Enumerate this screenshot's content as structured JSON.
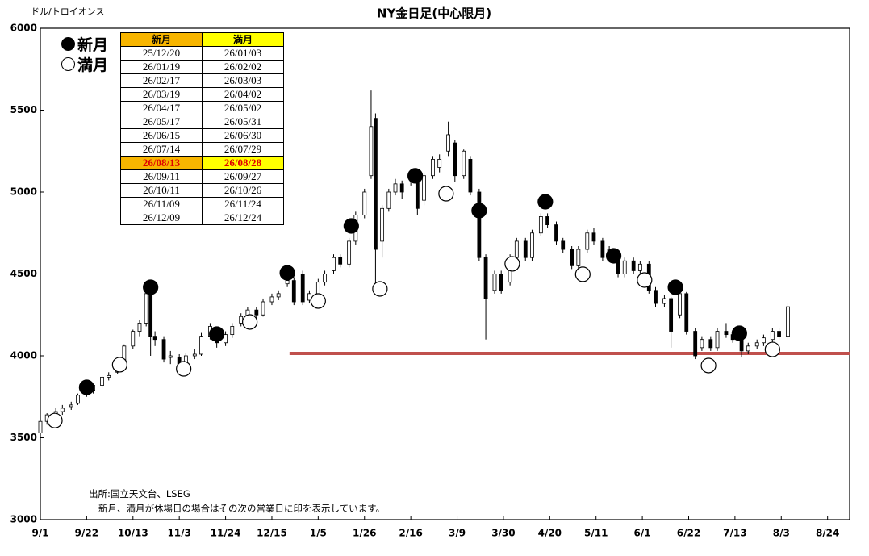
{
  "chart_data": {
    "type": "candlestick",
    "title": "NY金日足(中心限月)",
    "unit_label": "ドル/トロイオンス",
    "source": "出所:国立天文台、LSEG",
    "note": "新月、満月が休場日の場合はその次の営業日に印を表示しています。",
    "xlim": [
      0,
      367
    ],
    "xticks": [
      {
        "value": 0,
        "label": "9/1"
      },
      {
        "value": 21,
        "label": "9/22"
      },
      {
        "value": 42,
        "label": "10/13"
      },
      {
        "value": 63,
        "label": "11/3"
      },
      {
        "value": 84,
        "label": "11/24"
      },
      {
        "value": 105,
        "label": "12/15"
      },
      {
        "value": 126,
        "label": "1/5"
      },
      {
        "value": 147,
        "label": "1/26"
      },
      {
        "value": 168,
        "label": "2/16"
      },
      {
        "value": 189,
        "label": "3/9"
      },
      {
        "value": 210,
        "label": "3/30"
      },
      {
        "value": 231,
        "label": "4/20"
      },
      {
        "value": 252,
        "label": "5/11"
      },
      {
        "value": 273,
        "label": "6/1"
      },
      {
        "value": 294,
        "label": "6/22"
      },
      {
        "value": 315,
        "label": "7/13"
      },
      {
        "value": 336,
        "label": "8/3"
      },
      {
        "value": 357,
        "label": "8/24"
      }
    ],
    "ylim": [
      3000,
      6000
    ],
    "yticks": [
      3000,
      3500,
      4000,
      4500,
      5000,
      5500,
      6000
    ],
    "up_color": "#ffffff",
    "down_color": "#000000",
    "candles": {
      "x": [
        0,
        3,
        7,
        10,
        14,
        17,
        21,
        24,
        28,
        31,
        35,
        38,
        42,
        45,
        48,
        50,
        52,
        56,
        59,
        63,
        66,
        70,
        73,
        77,
        80,
        84,
        87,
        91,
        94,
        98,
        101,
        105,
        108,
        112,
        115,
        119,
        122,
        126,
        129,
        133,
        136,
        140,
        143,
        147,
        150,
        152,
        155,
        158,
        161,
        164,
        168,
        171,
        174,
        178,
        181,
        185,
        188,
        192,
        195,
        199,
        202,
        206,
        209,
        213,
        216,
        220,
        223,
        227,
        230,
        234,
        237,
        241,
        244,
        248,
        251,
        255,
        258,
        262,
        265,
        269,
        272,
        276,
        279,
        283,
        286,
        290,
        293,
        297,
        300,
        304,
        307,
        311,
        314,
        318,
        321,
        325,
        328,
        332,
        335,
        339
      ],
      "open": [
        3530,
        3600,
        3640,
        3660,
        3690,
        3710,
        3770,
        3790,
        3820,
        3870,
        3900,
        3970,
        4060,
        4150,
        4200,
        4370,
        4120,
        4100,
        3990,
        3990,
        3960,
        4000,
        4010,
        4120,
        4130,
        4080,
        4130,
        4200,
        4240,
        4280,
        4250,
        4330,
        4360,
        4440,
        4460,
        4500,
        4340,
        4380,
        4450,
        4520,
        4600,
        4560,
        4700,
        4860,
        5100,
        5450,
        4700,
        4900,
        5000,
        5050,
        5080,
        5100,
        4950,
        5100,
        5150,
        5250,
        5300,
        5100,
        5200,
        5000,
        4600,
        4400,
        4500,
        4450,
        4600,
        4700,
        4600,
        4750,
        4850,
        4800,
        4700,
        4650,
        4550,
        4650,
        4750,
        4700,
        4600,
        4600,
        4500,
        4580,
        4520,
        4560,
        4400,
        4320,
        4350,
        4250,
        4380,
        4150,
        4050,
        4100,
        4050,
        4150,
        4130,
        4100,
        4030,
        4060,
        4080,
        4100,
        4150,
        4120
      ],
      "high": [
        3620,
        3650,
        3680,
        3700,
        3720,
        3770,
        3800,
        3830,
        3880,
        3900,
        3970,
        4070,
        4160,
        4220,
        4400,
        4390,
        4150,
        4120,
        4030,
        4010,
        4020,
        4040,
        4140,
        4200,
        4150,
        4150,
        4200,
        4260,
        4300,
        4300,
        4350,
        4380,
        4400,
        4480,
        4480,
        4520,
        4400,
        4470,
        4520,
        4620,
        4620,
        4720,
        4880,
        5020,
        5620,
        5480,
        4920,
        5020,
        5080,
        5070,
        5120,
        5110,
        5120,
        5220,
        5230,
        5430,
        5320,
        5260,
        5220,
        5020,
        4620,
        4520,
        4520,
        4620,
        4720,
        4720,
        4770,
        4870,
        4870,
        4820,
        4720,
        4670,
        4670,
        4770,
        4780,
        4720,
        4670,
        4620,
        4600,
        4600,
        4580,
        4580,
        4420,
        4370,
        4360,
        4400,
        4390,
        4170,
        4120,
        4120,
        4170,
        4200,
        4150,
        4120,
        4080,
        4100,
        4130,
        4170,
        4170,
        4320
      ],
      "low": [
        3510,
        3580,
        3620,
        3640,
        3670,
        3700,
        3750,
        3770,
        3800,
        3850,
        3890,
        3950,
        4040,
        4120,
        4180,
        4000,
        4060,
        3960,
        3950,
        3900,
        3940,
        3980,
        4000,
        4100,
        4050,
        4060,
        4110,
        4180,
        4220,
        4220,
        4240,
        4310,
        4340,
        4420,
        4310,
        4310,
        4320,
        4360,
        4430,
        4500,
        4540,
        4540,
        4680,
        4840,
        5080,
        4400,
        4600,
        4880,
        4980,
        4960,
        5040,
        4860,
        4920,
        5080,
        5120,
        5220,
        5060,
        5080,
        4980,
        4580,
        4100,
        4380,
        4380,
        4430,
        4580,
        4580,
        4580,
        4730,
        4780,
        4680,
        4630,
        4530,
        4530,
        4630,
        4680,
        4580,
        4580,
        4480,
        4480,
        4500,
        4500,
        4380,
        4300,
        4300,
        4050,
        4230,
        4130,
        3980,
        4030,
        4030,
        4030,
        4110,
        4080,
        3990,
        4010,
        4040,
        4060,
        4080,
        4100,
        4100
      ],
      "close": [
        3600,
        3640,
        3660,
        3680,
        3700,
        3760,
        3790,
        3820,
        3870,
        3880,
        3960,
        4060,
        4150,
        4200,
        4380,
        4120,
        4100,
        3980,
        4000,
        3950,
        4000,
        4010,
        4120,
        4180,
        4080,
        4130,
        4180,
        4240,
        4280,
        4250,
        4330,
        4360,
        4380,
        4460,
        4330,
        4330,
        4380,
        4450,
        4500,
        4600,
        4560,
        4700,
        4860,
        5000,
        5400,
        4650,
        4900,
        5000,
        5050,
        5000,
        5100,
        4900,
        5100,
        5200,
        5200,
        5350,
        5100,
        5250,
        5000,
        4600,
        4350,
        4500,
        4400,
        4600,
        4700,
        4600,
        4750,
        4850,
        4800,
        4700,
        4650,
        4550,
        4650,
        4750,
        4700,
        4600,
        4650,
        4500,
        4580,
        4520,
        4560,
        4400,
        4320,
        4350,
        4150,
        4380,
        4150,
        4000,
        4100,
        4050,
        4150,
        4130,
        4100,
        4030,
        4060,
        4080,
        4110,
        4150,
        4120,
        4300
      ]
    },
    "moon_markers": [
      {
        "name": "新月",
        "filled": true,
        "x": [
          21,
          50,
          80,
          112,
          141,
          170,
          199,
          229,
          260,
          288,
          317
        ],
        "y": [
          3808,
          4419,
          4133,
          4507,
          4793,
          5099,
          4887,
          4941,
          4611,
          4419,
          4138
        ]
      },
      {
        "name": "満月",
        "filled": false,
        "x": [
          6.6,
          36,
          65,
          95,
          126,
          154,
          184,
          214,
          246,
          274,
          303,
          332
        ],
        "y": [
          3605,
          3946,
          3921,
          4207,
          4335,
          4409,
          4990,
          4562,
          4498,
          4463,
          3941,
          4039
        ]
      }
    ],
    "reference_line": {
      "value": 4015,
      "x_start": 113,
      "color": "#c0504d"
    },
    "table": {
      "header": [
        "新月",
        "満月"
      ],
      "header_colors": [
        "#f7b500",
        "#ffff00"
      ],
      "highlight_row": 8,
      "rows": [
        [
          "25/12/20",
          "26/01/03"
        ],
        [
          "26/01/19",
          "26/02/02"
        ],
        [
          "26/02/17",
          "26/03/03"
        ],
        [
          "26/03/19",
          "26/04/02"
        ],
        [
          "26/04/17",
          "26/05/02"
        ],
        [
          "26/05/17",
          "26/05/31"
        ],
        [
          "26/06/15",
          "26/06/30"
        ],
        [
          "26/07/14",
          "26/07/29"
        ],
        [
          "26/08/13",
          "26/08/28"
        ],
        [
          "26/09/11",
          "26/09/27"
        ],
        [
          "26/10/11",
          "26/10/26"
        ],
        [
          "26/11/09",
          "26/11/24"
        ],
        [
          "26/12/09",
          "26/12/24"
        ]
      ]
    }
  }
}
